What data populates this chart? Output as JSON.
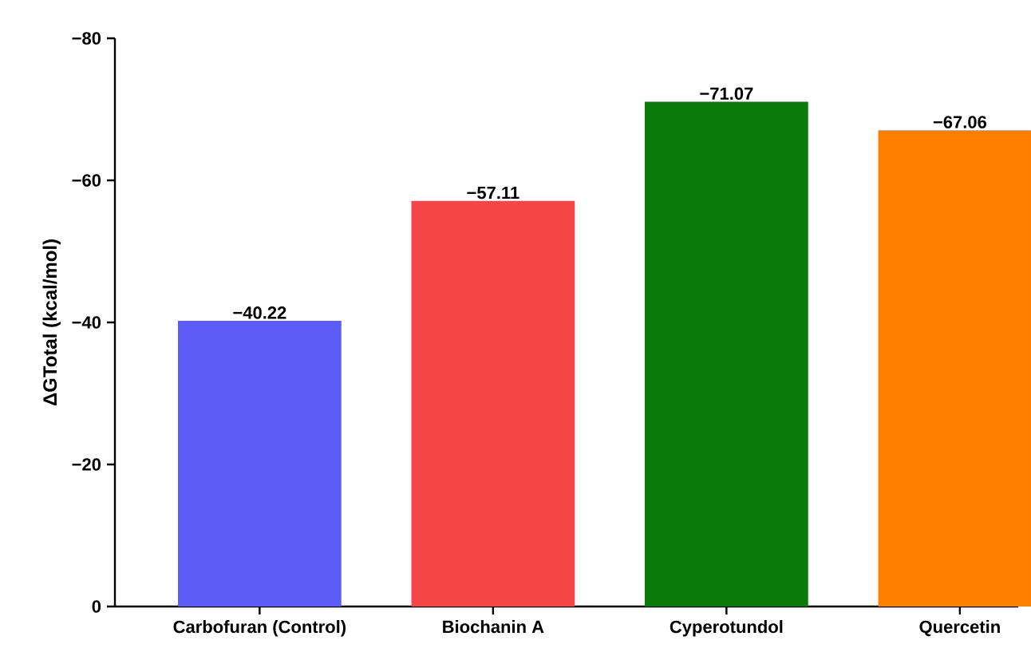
{
  "chart_data": {
    "type": "bar",
    "ylabel": "ΔGTotal (kcal/mol)",
    "categories": [
      "Carbofuran (Control)",
      "Biochanin A",
      "Cyperotundol",
      "Quercetin"
    ],
    "values": [
      -40.22,
      -57.11,
      -71.07,
      -67.06
    ],
    "colors": [
      "#5c5cf7",
      "#f54545",
      "#0a7a0a",
      "#ff8000"
    ],
    "value_labels": [
      "−40.22",
      "−57.11",
      "−71.07",
      "−67.06"
    ],
    "ylim": [
      0,
      -80
    ],
    "yticks": [
      {
        "value": -80,
        "label": "−80"
      },
      {
        "value": -60,
        "label": "−60"
      },
      {
        "value": -40,
        "label": "−40"
      },
      {
        "value": -20,
        "label": "−20"
      },
      0
    ],
    "grid": false
  }
}
